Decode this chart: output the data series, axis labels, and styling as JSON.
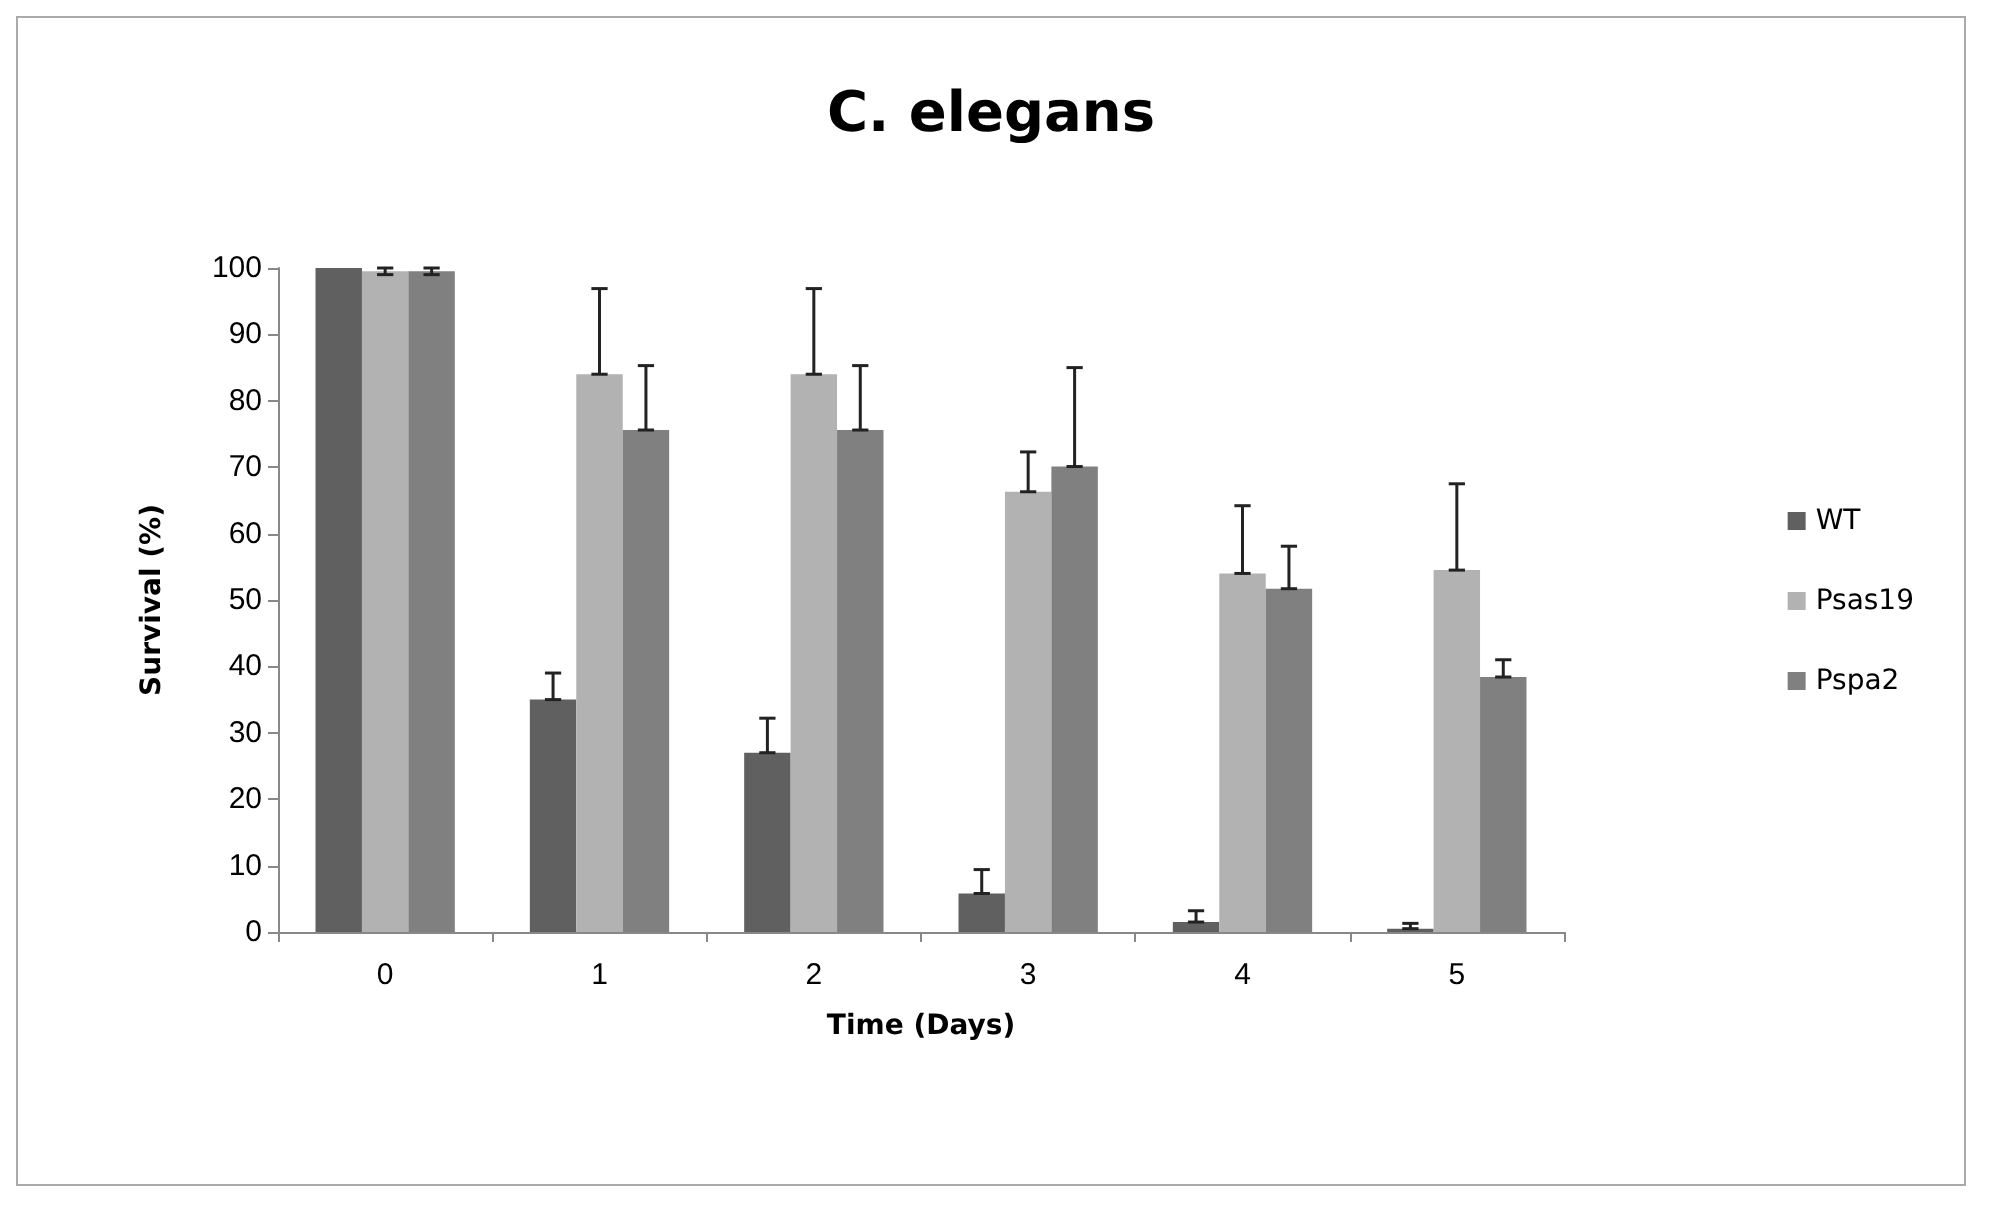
{
  "chart_data": {
    "type": "bar",
    "title": "C. elegans",
    "xlabel": "Time (Days)",
    "ylabel": "Survival (%)",
    "categories": [
      "0",
      "1",
      "2",
      "3",
      "4",
      "5"
    ],
    "series": [
      {
        "name": "WT",
        "color": "#606060",
        "values": [
          100,
          35,
          27,
          5.8,
          1.5,
          0.5
        ],
        "errors": [
          null,
          [
            35,
            39
          ],
          [
            27,
            32.2
          ],
          [
            5.8,
            9.4
          ],
          [
            1.5,
            3.2
          ],
          [
            0.5,
            1.3
          ]
        ]
      },
      {
        "name": "Psas19",
        "color": "#b2b2b2",
        "values": [
          99.5,
          84,
          84,
          66.3,
          54,
          54.5
        ],
        "errors": [
          0.5,
          [
            84,
            96.9
          ],
          [
            84,
            96.9
          ],
          [
            66.3,
            72.3
          ],
          [
            54,
            64.2
          ],
          [
            54.5,
            67.5
          ]
        ]
      },
      {
        "name": "Pspa2",
        "color": "#808080",
        "values": [
          99.5,
          75.6,
          75.6,
          70.1,
          51.7,
          38.4
        ],
        "errors": [
          0.5,
          [
            75.6,
            85.3
          ],
          [
            75.6,
            85.3
          ],
          [
            70.1,
            85
          ],
          [
            51.7,
            58.1
          ],
          [
            38.4,
            41
          ]
        ]
      }
    ],
    "ylim": [
      0,
      100
    ],
    "yticks": [
      0,
      10,
      20,
      30,
      40,
      50,
      60,
      70,
      80,
      90,
      100
    ],
    "grid": false,
    "legend": "right"
  }
}
